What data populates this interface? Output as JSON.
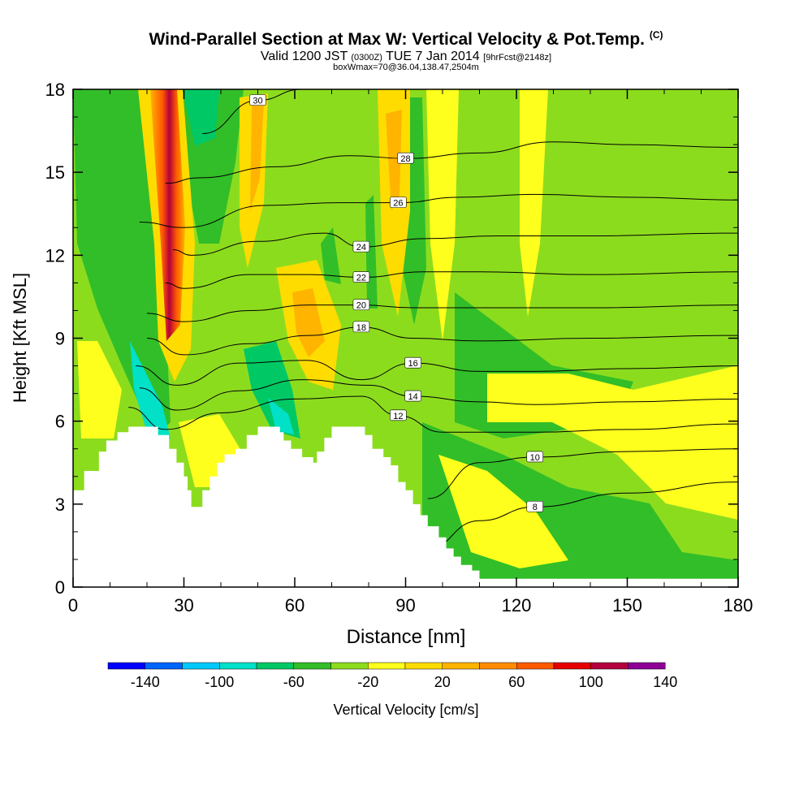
{
  "header": {
    "title": "Wind-Parallel Section at Max W: Vertical Velocity & Pot.Temp.",
    "title_tag": "(C)",
    "valid_prefix": "Valid 1200 JST",
    "valid_z": "(0300Z)",
    "valid_date": "TUE 7 Jan 2014",
    "forecast": "[9hrFcst@2148z]",
    "box_info": "boxWmax=70@36.04,138.47,2504m"
  },
  "chart_data": {
    "type": "heatmap",
    "xlabel": "Distance [nm]",
    "ylabel": "Height [Kft MSL]",
    "xlim": [
      0,
      180
    ],
    "ylim": [
      0,
      18
    ],
    "xticks": [
      "0",
      "30",
      "60",
      "90",
      "120",
      "150",
      "180"
    ],
    "yticks": [
      "0",
      "3",
      "6",
      "9",
      "12",
      "15",
      "18"
    ],
    "colorbar": {
      "label": "Vertical Velocity [cm/s]",
      "tick_labels": [
        "-140",
        "-100",
        "-60",
        "-20",
        "20",
        "60",
        "100",
        "140"
      ],
      "levels": [
        -160,
        -140,
        -120,
        -100,
        -80,
        -60,
        -40,
        -20,
        0,
        20,
        40,
        60,
        80,
        100,
        120,
        140,
        160
      ],
      "colors": [
        "#0000ff",
        "#0064ff",
        "#00c8ff",
        "#00e1c8",
        "#00c864",
        "#32be28",
        "#8cdc1e",
        "#ffff1e",
        "#ffdc00",
        "#ffb400",
        "#ff8c00",
        "#ff5a00",
        "#e60000",
        "#b4003c",
        "#8c0096"
      ]
    },
    "terrain": [
      [
        0,
        3.5
      ],
      [
        3,
        3.5
      ],
      [
        3,
        4.2
      ],
      [
        7,
        4.2
      ],
      [
        7,
        4.9
      ],
      [
        9,
        4.9
      ],
      [
        9,
        5.3
      ],
      [
        12,
        5.3
      ],
      [
        12,
        5.6
      ],
      [
        15,
        5.6
      ],
      [
        15,
        5.8
      ],
      [
        23,
        5.8
      ],
      [
        23,
        5.5
      ],
      [
        26,
        5.5
      ],
      [
        26,
        5.0
      ],
      [
        28,
        5.0
      ],
      [
        28,
        4.5
      ],
      [
        30,
        4.5
      ],
      [
        30,
        4.0
      ],
      [
        31,
        4.0
      ],
      [
        31,
        3.5
      ],
      [
        32,
        3.5
      ],
      [
        32,
        2.9
      ],
      [
        35,
        2.9
      ],
      [
        35,
        3.5
      ],
      [
        37,
        3.5
      ],
      [
        37,
        4.0
      ],
      [
        39,
        4.0
      ],
      [
        39,
        4.5
      ],
      [
        41,
        4.5
      ],
      [
        41,
        4.8
      ],
      [
        44,
        4.8
      ],
      [
        44,
        5.0
      ],
      [
        47,
        5.0
      ],
      [
        47,
        5.5
      ],
      [
        50,
        5.5
      ],
      [
        50,
        5.8
      ],
      [
        56,
        5.8
      ],
      [
        56,
        5.6
      ],
      [
        57,
        5.6
      ],
      [
        57,
        5.3
      ],
      [
        59,
        5.3
      ],
      [
        59,
        5.0
      ],
      [
        62,
        5.0
      ],
      [
        62,
        4.7
      ],
      [
        65,
        4.7
      ],
      [
        65,
        4.5
      ],
      [
        66,
        4.5
      ],
      [
        66,
        4.9
      ],
      [
        68,
        4.9
      ],
      [
        68,
        5.4
      ],
      [
        70,
        5.4
      ],
      [
        70,
        5.8
      ],
      [
        79,
        5.8
      ],
      [
        79,
        5.5
      ],
      [
        81,
        5.5
      ],
      [
        81,
        5.0
      ],
      [
        84,
        5.0
      ],
      [
        84,
        4.7
      ],
      [
        86,
        4.7
      ],
      [
        86,
        4.4
      ],
      [
        88,
        4.4
      ],
      [
        88,
        3.8
      ],
      [
        90,
        3.8
      ],
      [
        90,
        3.5
      ],
      [
        92,
        3.5
      ],
      [
        92,
        3.0
      ],
      [
        94,
        3.0
      ],
      [
        94,
        2.6
      ],
      [
        96,
        2.6
      ],
      [
        96,
        2.2
      ],
      [
        99,
        2.2
      ],
      [
        99,
        1.8
      ],
      [
        101,
        1.8
      ],
      [
        101,
        1.4
      ],
      [
        103,
        1.4
      ],
      [
        103,
        1.1
      ],
      [
        105,
        1.1
      ],
      [
        105,
        0.8
      ],
      [
        108,
        0.8
      ],
      [
        108,
        0.6
      ],
      [
        110,
        0.6
      ],
      [
        110,
        0.3
      ],
      [
        180,
        0.3
      ],
      [
        180,
        0
      ]
    ],
    "theta_contours": [
      {
        "level": 8,
        "points": [
          [
            95,
            1.3
          ],
          [
            110,
            2.4
          ],
          [
            125,
            2.9
          ],
          [
            150,
            3.4
          ],
          [
            180,
            3.8
          ]
        ]
      },
      {
        "level": 10,
        "points": [
          [
            96,
            3.2
          ],
          [
            110,
            4.5
          ],
          [
            125,
            4.7
          ],
          [
            150,
            4.9
          ],
          [
            180,
            5.0
          ]
        ]
      },
      {
        "level": 12,
        "points": [
          [
            15,
            6.5
          ],
          [
            25,
            5.7
          ],
          [
            40,
            6.3
          ],
          [
            60,
            6.8
          ],
          [
            78,
            6.9
          ],
          [
            88,
            6.2
          ],
          [
            100,
            5.6
          ],
          [
            125,
            5.6
          ],
          [
            150,
            5.7
          ],
          [
            180,
            5.9
          ]
        ]
      },
      {
        "level": 14,
        "points": [
          [
            18,
            7.2
          ],
          [
            28,
            6.4
          ],
          [
            45,
            7.1
          ],
          [
            62,
            7.5
          ],
          [
            80,
            7.3
          ],
          [
            92,
            6.9
          ],
          [
            110,
            6.7
          ],
          [
            125,
            6.6
          ],
          [
            150,
            6.7
          ],
          [
            180,
            6.8
          ]
        ]
      },
      {
        "level": 16,
        "points": [
          [
            17,
            8.0
          ],
          [
            28,
            7.3
          ],
          [
            45,
            8.1
          ],
          [
            63,
            8.2
          ],
          [
            78,
            7.5
          ],
          [
            92,
            8.1
          ],
          [
            110,
            7.8
          ],
          [
            125,
            7.8
          ],
          [
            150,
            7.9
          ],
          [
            180,
            8.0
          ]
        ]
      },
      {
        "level": 18,
        "points": [
          [
            20,
            9.0
          ],
          [
            30,
            8.4
          ],
          [
            48,
            8.8
          ],
          [
            64,
            9.1
          ],
          [
            78,
            9.4
          ],
          [
            92,
            9.0
          ],
          [
            110,
            8.9
          ],
          [
            140,
            9.0
          ],
          [
            180,
            9.1
          ]
        ]
      },
      {
        "level": 20,
        "points": [
          [
            20,
            9.9
          ],
          [
            30,
            9.6
          ],
          [
            48,
            10.0
          ],
          [
            64,
            10.2
          ],
          [
            78,
            10.2
          ],
          [
            92,
            10.1
          ],
          [
            110,
            10.1
          ],
          [
            140,
            10.1
          ],
          [
            180,
            10.2
          ]
        ]
      },
      {
        "level": 22,
        "points": [
          [
            25,
            11.0
          ],
          [
            30,
            10.8
          ],
          [
            48,
            11.3
          ],
          [
            64,
            11.3
          ],
          [
            78,
            11.2
          ],
          [
            95,
            11.4
          ],
          [
            110,
            11.4
          ],
          [
            140,
            11.3
          ],
          [
            180,
            11.4
          ]
        ]
      },
      {
        "level": 24,
        "points": [
          [
            27,
            12.2
          ],
          [
            32,
            12.0
          ],
          [
            50,
            12.5
          ],
          [
            68,
            12.8
          ],
          [
            78,
            12.3
          ],
          [
            95,
            12.6
          ],
          [
            115,
            12.7
          ],
          [
            140,
            12.7
          ],
          [
            180,
            12.8
          ]
        ]
      },
      {
        "level": 26,
        "points": [
          [
            18,
            13.2
          ],
          [
            30,
            13.0
          ],
          [
            52,
            13.8
          ],
          [
            72,
            13.9
          ],
          [
            88,
            13.9
          ],
          [
            105,
            14.1
          ],
          [
            125,
            14.2
          ],
          [
            150,
            14.1
          ],
          [
            180,
            14.0
          ]
        ]
      },
      {
        "level": 28,
        "points": [
          [
            25,
            14.6
          ],
          [
            34,
            14.8
          ],
          [
            55,
            15.2
          ],
          [
            75,
            15.6
          ],
          [
            90,
            15.5
          ],
          [
            110,
            15.7
          ],
          [
            130,
            16.1
          ],
          [
            150,
            16.0
          ],
          [
            180,
            15.9
          ]
        ]
      },
      {
        "level": 30,
        "points": [
          [
            35,
            16.4
          ],
          [
            50,
            17.6
          ],
          [
            62,
            18.0
          ]
        ]
      }
    ]
  }
}
